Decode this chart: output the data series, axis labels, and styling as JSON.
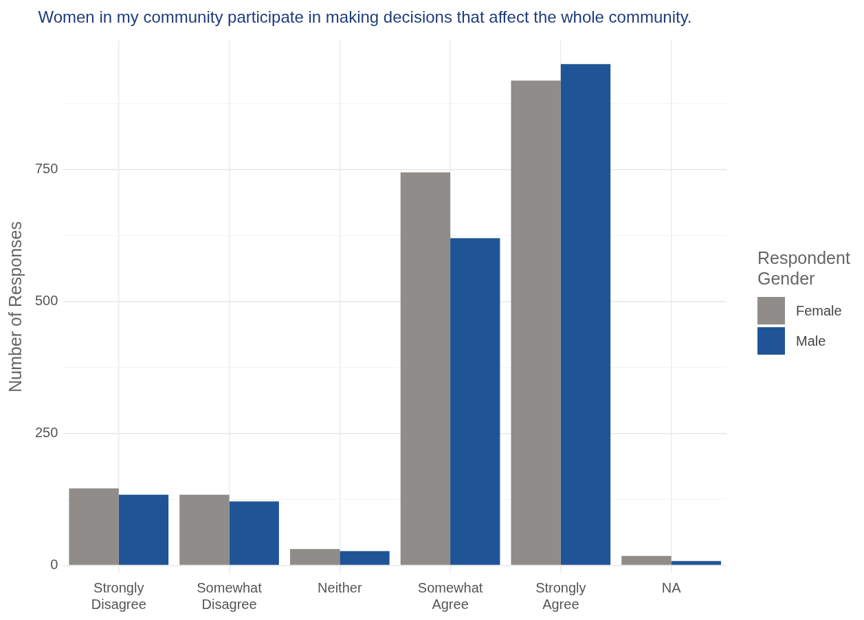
{
  "chart_data": {
    "type": "bar",
    "title": "Women in my community participate in making decisions that affect the whole community.",
    "ylabel": "Number of Responses",
    "legend_title": "Respondent Gender",
    "categories": [
      "Strongly Disagree",
      "Somewhat Disagree",
      "Neither",
      "Somewhat Agree",
      "Strongly Agree",
      "NA"
    ],
    "series": [
      {
        "name": "Female",
        "color": "#8f8c89",
        "values": [
          146,
          134,
          31,
          745,
          919,
          18
        ]
      },
      {
        "name": "Male",
        "color": "#1f5596",
        "values": [
          134,
          121,
          27,
          620,
          950,
          8
        ]
      }
    ],
    "ylim": [
      -15,
      995
    ],
    "yticks": [
      0,
      {
        "value": 125,
        "label": null
      },
      250,
      {
        "value": 375,
        "label": null
      },
      500,
      {
        "value": 625,
        "label": null
      },
      750,
      {
        "value": 875,
        "label": null
      }
    ],
    "grid": true,
    "legend": "right"
  }
}
